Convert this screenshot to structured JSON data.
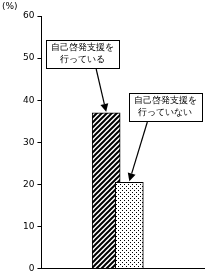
{
  "chart_data": {
    "type": "bar",
    "y_label": "(%)",
    "categories": [
      null,
      null
    ],
    "values": [
      37,
      20.5
    ],
    "colors": [
      "#000000",
      "#000000"
    ],
    "annotations": [
      [
        "自己啓発支援を",
        "行っている"
      ],
      [
        "自己啓発支援を",
        "行っていない"
      ]
    ],
    "ylim": [
      0,
      60
    ],
    "yticks": [
      0,
      10,
      20,
      30,
      40,
      50,
      60
    ],
    "grid": false,
    "tick_labels": "y"
  }
}
